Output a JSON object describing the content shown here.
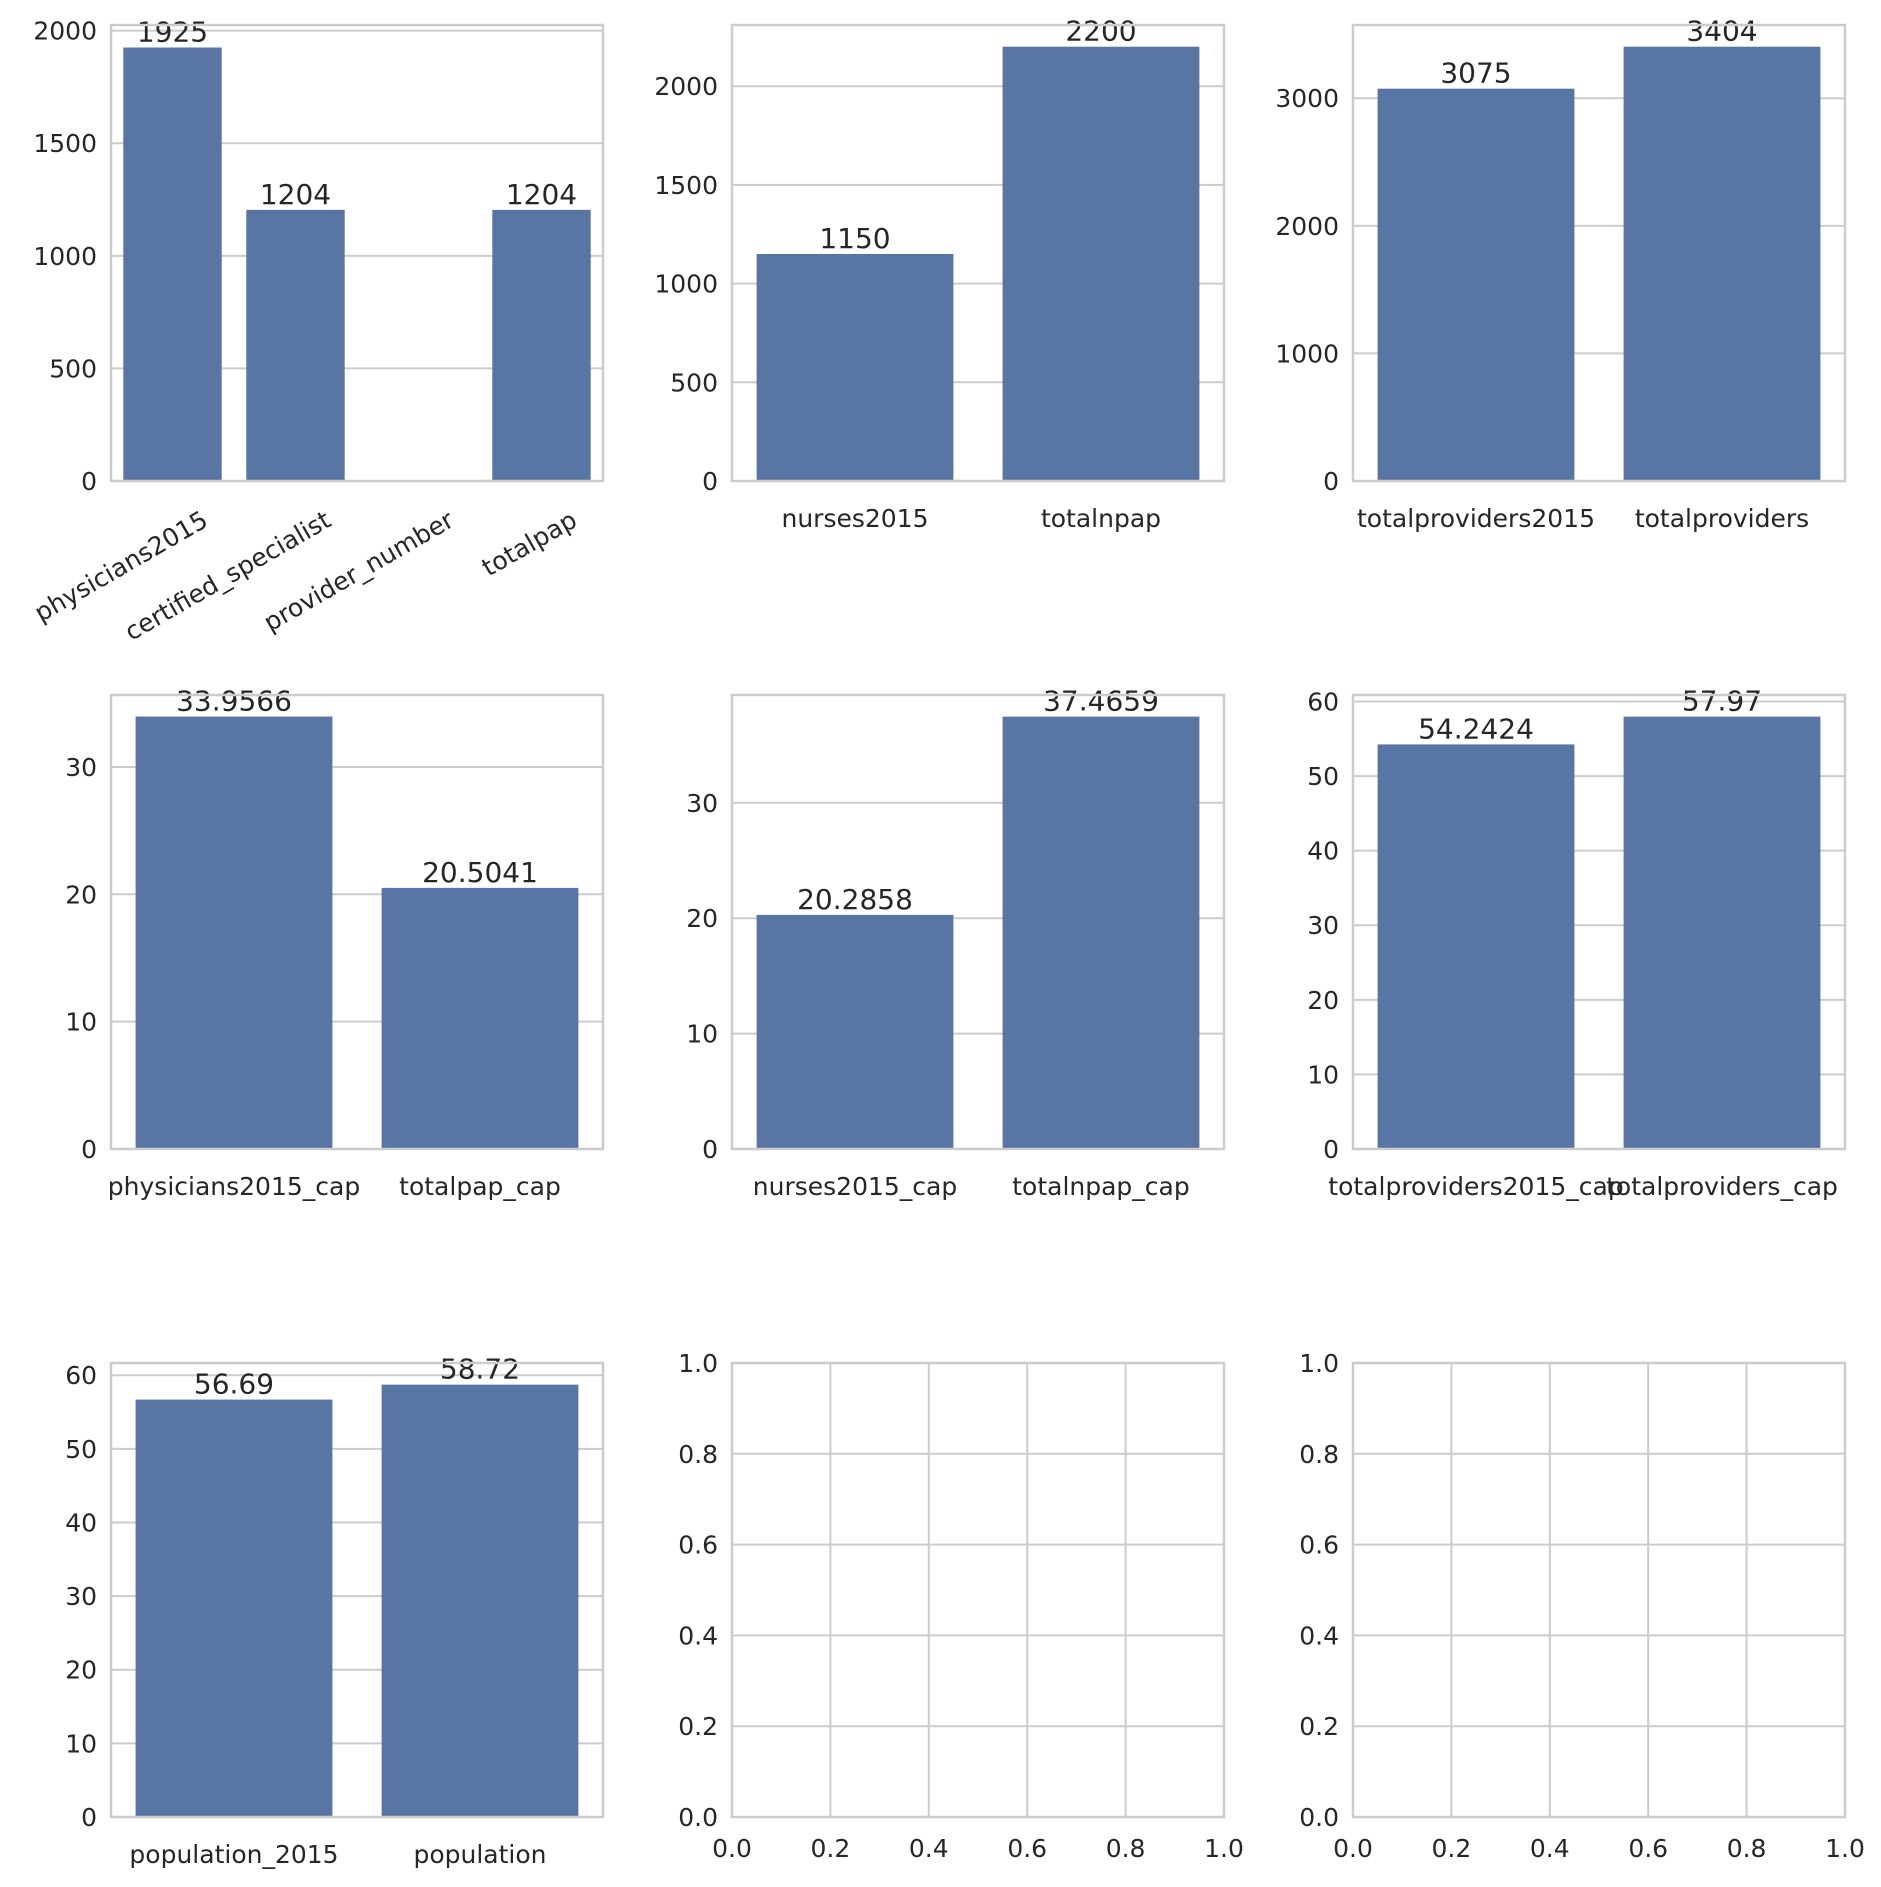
{
  "colors": {
    "bar": "#5975a4",
    "grid": "#cccccc",
    "frame": "#cccccc",
    "text": "#262626",
    "background": "#ffffff"
  },
  "chart_data": [
    {
      "type": "bar",
      "title": "",
      "xlabel": "",
      "ylabel": "",
      "categories": [
        "physicians2015",
        "certified_specialist",
        "provider_number",
        "totalpap"
      ],
      "values": [
        1925,
        1204,
        null,
        1204
      ],
      "data_labels": [
        "1925",
        "1204",
        "",
        "1204"
      ],
      "ylim": [
        0,
        2025
      ],
      "yticks": [
        0,
        500,
        1000,
        1500,
        2000
      ],
      "ytick_labels": [
        "0",
        "500",
        "1000",
        "1500",
        "2000"
      ],
      "rotated_category_labels": true,
      "grid": true,
      "legend": "none"
    },
    {
      "type": "bar",
      "title": "",
      "xlabel": "",
      "ylabel": "",
      "categories": [
        "nurses2015",
        "totalnpap"
      ],
      "values": [
        1150,
        2200
      ],
      "data_labels": [
        "1150",
        "2200"
      ],
      "ylim": [
        0,
        2310
      ],
      "yticks": [
        0,
        500,
        1000,
        1500,
        2000
      ],
      "ytick_labels": [
        "0",
        "500",
        "1000",
        "1500",
        "2000"
      ],
      "rotated_category_labels": false,
      "grid": true,
      "legend": "none"
    },
    {
      "type": "bar",
      "title": "",
      "xlabel": "",
      "ylabel": "",
      "categories": [
        "totalproviders2015",
        "totalproviders"
      ],
      "values": [
        3075,
        3404
      ],
      "data_labels": [
        "3075",
        "3404"
      ],
      "ylim": [
        0,
        3574
      ],
      "yticks": [
        0,
        1000,
        2000,
        3000
      ],
      "ytick_labels": [
        "0",
        "1000",
        "2000",
        "3000"
      ],
      "rotated_category_labels": false,
      "grid": true,
      "legend": "none"
    },
    {
      "type": "bar",
      "title": "",
      "xlabel": "",
      "ylabel": "",
      "categories": [
        "physicians2015_cap",
        "totalpap_cap"
      ],
      "values": [
        33.9566,
        20.5041
      ],
      "data_labels": [
        "33.9566",
        "20.5041"
      ],
      "ylim": [
        0,
        35.65
      ],
      "yticks": [
        0,
        10,
        20,
        30
      ],
      "ytick_labels": [
        "0",
        "10",
        "20",
        "30"
      ],
      "rotated_category_labels": false,
      "grid": true,
      "legend": "none"
    },
    {
      "type": "bar",
      "title": "",
      "xlabel": "",
      "ylabel": "",
      "categories": [
        "nurses2015_cap",
        "totalnpap_cap"
      ],
      "values": [
        20.2858,
        37.4659
      ],
      "data_labels": [
        "20.2858",
        "37.4659"
      ],
      "ylim": [
        0,
        39.34
      ],
      "yticks": [
        0,
        10,
        20,
        30
      ],
      "ytick_labels": [
        "0",
        "10",
        "20",
        "30"
      ],
      "rotated_category_labels": false,
      "grid": true,
      "legend": "none"
    },
    {
      "type": "bar",
      "title": "",
      "xlabel": "",
      "ylabel": "",
      "categories": [
        "totalproviders2015_cap",
        "totalproviders_cap"
      ],
      "values": [
        54.2424,
        57.97
      ],
      "data_labels": [
        "54.2424",
        "57.97"
      ],
      "ylim": [
        0,
        60.87
      ],
      "yticks": [
        0,
        10,
        20,
        30,
        40,
        50,
        60
      ],
      "ytick_labels": [
        "0",
        "10",
        "20",
        "30",
        "40",
        "50",
        "60"
      ],
      "rotated_category_labels": false,
      "grid": true,
      "legend": "none"
    },
    {
      "type": "bar",
      "title": "",
      "xlabel": "",
      "ylabel": "",
      "categories": [
        "population_2015",
        "population"
      ],
      "values": [
        56.69,
        58.72
      ],
      "data_labels": [
        "56.69",
        "58.72"
      ],
      "ylim": [
        0,
        61.66
      ],
      "yticks": [
        0,
        10,
        20,
        30,
        40,
        50,
        60
      ],
      "ytick_labels": [
        "0",
        "10",
        "20",
        "30",
        "40",
        "50",
        "60"
      ],
      "rotated_category_labels": false,
      "grid": true,
      "legend": "none"
    },
    {
      "type": "bar",
      "title": "",
      "xlabel": "",
      "ylabel": "",
      "empty": true,
      "categories": [],
      "values": [],
      "xlim": [
        0,
        1
      ],
      "ylim": [
        0,
        1
      ],
      "xticks": [
        0,
        0.2,
        0.4,
        0.6,
        0.8,
        1
      ],
      "xtick_labels": [
        "0.0",
        "0.2",
        "0.4",
        "0.6",
        "0.8",
        "1.0"
      ],
      "yticks": [
        0,
        0.2,
        0.4,
        0.6,
        0.8,
        1
      ],
      "ytick_labels": [
        "0.0",
        "0.2",
        "0.4",
        "0.6",
        "0.8",
        "1.0"
      ],
      "grid": true,
      "legend": "none"
    },
    {
      "type": "bar",
      "title": "",
      "xlabel": "",
      "ylabel": "",
      "empty": true,
      "categories": [],
      "values": [],
      "xlim": [
        0,
        1
      ],
      "ylim": [
        0,
        1
      ],
      "xticks": [
        0,
        0.2,
        0.4,
        0.6,
        0.8,
        1
      ],
      "xtick_labels": [
        "0.0",
        "0.2",
        "0.4",
        "0.6",
        "0.8",
        "1.0"
      ],
      "yticks": [
        0,
        0.2,
        0.4,
        0.6,
        0.8,
        1
      ],
      "ytick_labels": [
        "0.0",
        "0.2",
        "0.4",
        "0.6",
        "0.8",
        "1.0"
      ],
      "grid": true,
      "legend": "none"
    }
  ]
}
